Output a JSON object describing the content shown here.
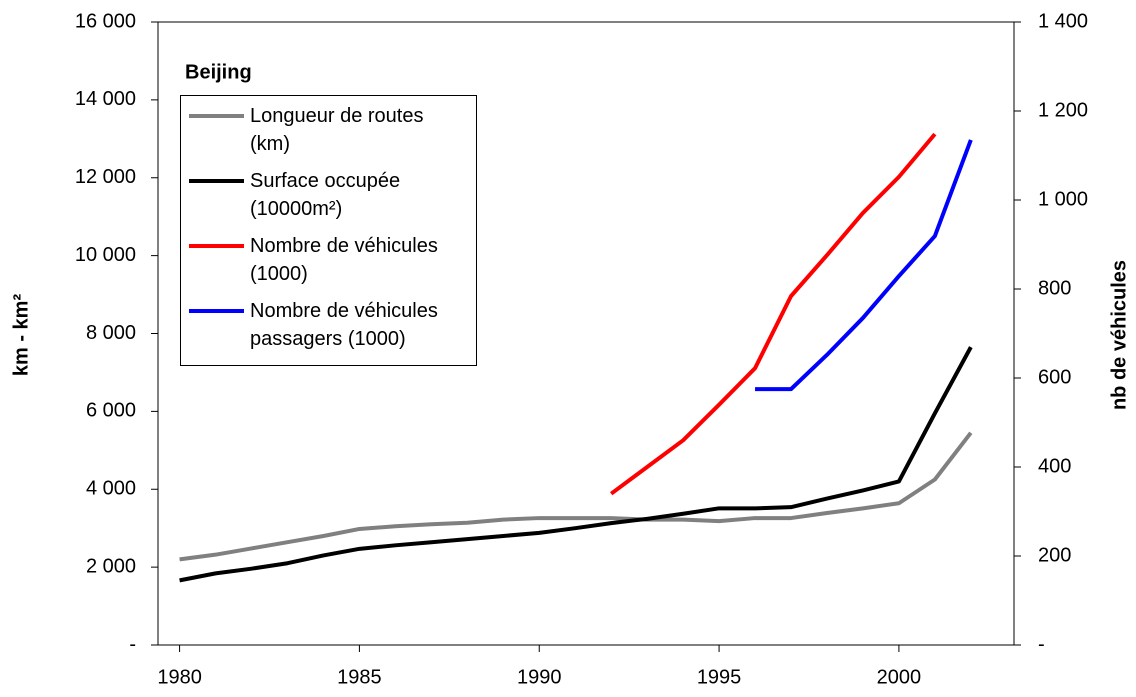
{
  "chart_data": {
    "type": "line",
    "title": "Beijing",
    "ylabel": "km - km²",
    "y2label": "nb de véhicules",
    "x": [
      1980,
      1981,
      1982,
      1983,
      1984,
      1985,
      1986,
      1987,
      1988,
      1989,
      1990,
      1991,
      1992,
      1993,
      1994,
      1995,
      1996,
      1997,
      1998,
      1999,
      2000,
      2001,
      2002
    ],
    "xlim": [
      1979.4,
      2003.2
    ],
    "xticks": [
      1980,
      1985,
      1990,
      1995,
      2000
    ],
    "ylim": [
      0,
      16000
    ],
    "yticks": [
      {
        "value": 0,
        "label": "-"
      },
      {
        "value": 2000,
        "label": "2 000"
      },
      {
        "value": 4000,
        "label": "4 000"
      },
      {
        "value": 6000,
        "label": "6 000"
      },
      {
        "value": 8000,
        "label": "8 000"
      },
      {
        "value": 10000,
        "label": "10 000"
      },
      {
        "value": 12000,
        "label": "12 000"
      },
      {
        "value": 14000,
        "label": "14 000"
      },
      {
        "value": 16000,
        "label": "16 000"
      }
    ],
    "y2lim": [
      0,
      1400
    ],
    "y2ticks": [
      {
        "value": 0,
        "label": "-"
      },
      200,
      400,
      600,
      800,
      {
        "value": 1000,
        "label": "1 000"
      },
      {
        "value": 1200,
        "label": "1 200"
      },
      {
        "value": 1400,
        "label": "1 400"
      }
    ],
    "series": [
      {
        "name": "Longueur de routes\n(km)",
        "color": "#808080",
        "values": [
          2200,
          2320,
          2480,
          2640,
          2800,
          2980,
          3050,
          3100,
          3140,
          3220,
          3260,
          3260,
          3260,
          3220,
          3220,
          3180,
          3260,
          3260,
          3390,
          3510,
          3640,
          4250,
          5450
        ]
      },
      {
        "name": "Surface occupée\n(10000m²)",
        "color": "#000000",
        "values": [
          1660,
          1840,
          1960,
          2100,
          2300,
          2470,
          2560,
          2640,
          2720,
          2800,
          2880,
          3000,
          3130,
          3240,
          3370,
          3510,
          3510,
          3540,
          3760,
          3970,
          4200,
          5950,
          7650
        ]
      },
      {
        "name": "Nombre de véhicules\n(1000)",
        "color": "#ff0000",
        "axis": "y2",
        "values": [
          null,
          null,
          null,
          null,
          null,
          null,
          null,
          null,
          null,
          null,
          null,
          null,
          340,
          400,
          460,
          540,
          622,
          784,
          876,
          971,
          1052,
          1148,
          null
        ]
      },
      {
        "name": "Nombre de véhicules\npassagers (1000)",
        "color": "#0000ff",
        "axis": "y2",
        "values": [
          null,
          null,
          null,
          null,
          null,
          null,
          null,
          null,
          null,
          null,
          null,
          null,
          null,
          null,
          null,
          null,
          575,
          575,
          652,
          735,
          829,
          919,
          1135
        ]
      }
    ]
  }
}
